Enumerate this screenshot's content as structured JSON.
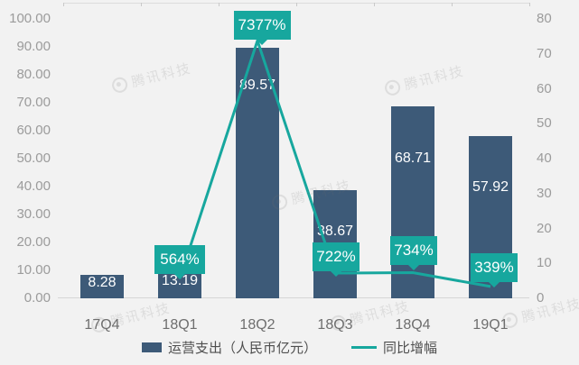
{
  "watermark": {
    "symbol": "©",
    "text": "腾讯科技"
  },
  "legend": {
    "items": [
      {
        "label": "运营支出（人民币亿元）",
        "swatch": "bar",
        "color": "#3d5a78"
      },
      {
        "label": "同比增幅",
        "swatch": "line",
        "color": "#17a79e"
      }
    ]
  },
  "chart_data": {
    "type": "combo",
    "title": "",
    "categories": [
      "17Q4",
      "18Q1",
      "18Q2",
      "18Q3",
      "18Q4",
      "19Q1"
    ],
    "series": [
      {
        "name": "运营支出（人民币亿元）",
        "type": "bar",
        "axis": "left",
        "color": "#3d5a78",
        "values": [
          8.28,
          13.19,
          89.57,
          38.67,
          68.71,
          57.92
        ],
        "value_labels": [
          "8.28",
          "13.19",
          "89.57",
          "38.67",
          "68.71",
          "57.92"
        ]
      },
      {
        "name": "同比增幅",
        "type": "line",
        "axis": "right",
        "color": "#17a79e",
        "values_percent": [
          null,
          564,
          7377,
          722,
          734,
          339
        ],
        "value_labels": [
          "",
          "564%",
          "7377%",
          "722%",
          "734%",
          "339%"
        ],
        "note": "right axis unit = 100%, e.g. 7377% plots at 73.77"
      }
    ],
    "left_axis": {
      "min": 0,
      "max": 100,
      "tick_labels": [
        "0.00",
        "10.00",
        "20.00",
        "30.00",
        "40.00",
        "50.00",
        "60.00",
        "70.00",
        "80.00",
        "90.00",
        "100.00"
      ]
    },
    "right_axis": {
      "min": 0,
      "max": 80,
      "tick_labels": [
        "0",
        "10",
        "20",
        "30",
        "40",
        "50",
        "60",
        "70",
        "80"
      ]
    },
    "grid": "top border with category tick marks; no horizontal gridlines",
    "legend_position": "bottom"
  }
}
